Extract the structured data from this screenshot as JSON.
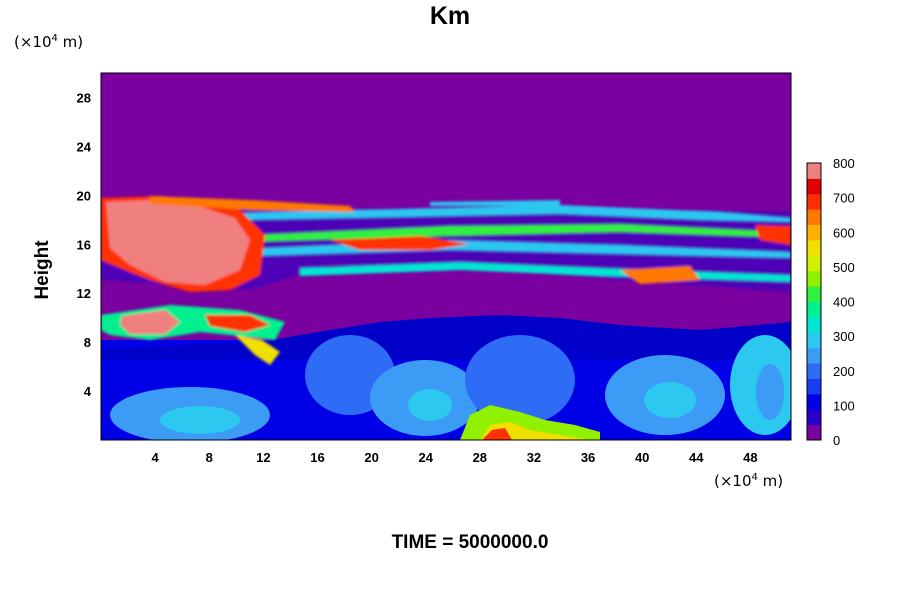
{
  "chart_data": {
    "type": "heatmap",
    "title": "Km",
    "ylabel": "Height",
    "xlabel": "",
    "x_unit_prefix": "(×10",
    "x_unit_exp": "4",
    "x_unit_suffix": " m)",
    "y_unit_prefix": "(×10",
    "y_unit_exp": "4",
    "y_unit_suffix": " m)",
    "xlim": [
      0,
      51
    ],
    "ylim": [
      0,
      30
    ],
    "x_ticks": [
      4,
      8,
      12,
      16,
      20,
      24,
      28,
      32,
      36,
      40,
      44,
      48
    ],
    "y_ticks": [
      4,
      8,
      12,
      16,
      20,
      24,
      28
    ],
    "colorbar": {
      "ticks": [
        0,
        100,
        200,
        300,
        400,
        500,
        600,
        700,
        800
      ],
      "range": [
        0,
        800
      ],
      "colors": [
        "#7a00a0",
        "#2a00c8",
        "#0000e6",
        "#1a3cf0",
        "#2f6cf5",
        "#3c9cf5",
        "#2cc8f0",
        "#00e6d2",
        "#00f090",
        "#30f040",
        "#90f000",
        "#d0f000",
        "#f0e000",
        "#ffb000",
        "#ff7800",
        "#ff3000",
        "#e00000",
        "#f08080"
      ]
    },
    "field_description_values": {
      "background_value": 0,
      "upper_layer_peak": 800,
      "lower_eddy_range": [
        100,
        300
      ]
    },
    "footer": "TIME = 5000000.0"
  }
}
